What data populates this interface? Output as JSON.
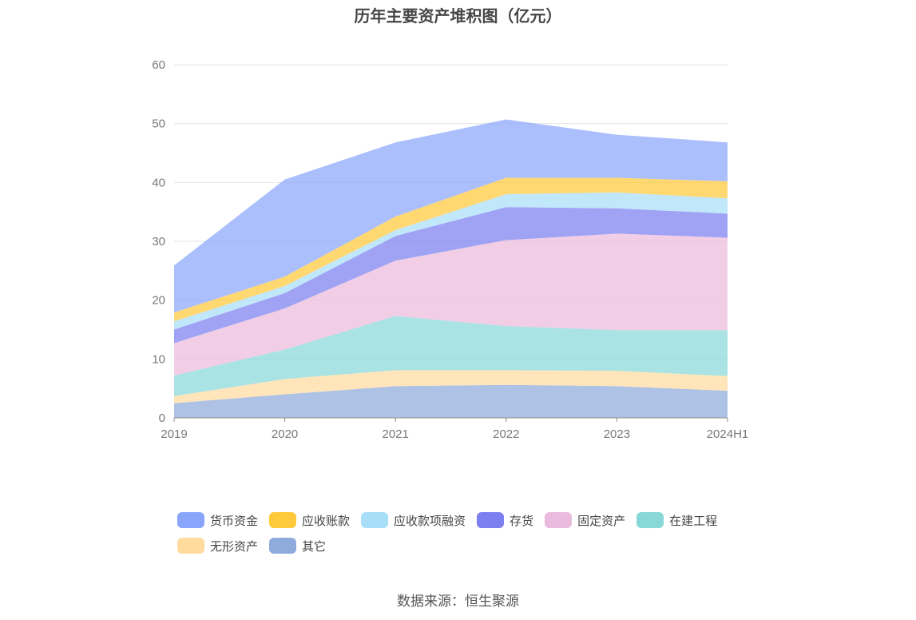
{
  "title": "历年主要资产堆积图（亿元）",
  "source": "数据来源：恒生聚源",
  "chart_data": {
    "type": "area",
    "stacked": true,
    "categories": [
      "2019",
      "2020",
      "2021",
      "2022",
      "2023",
      "2024H1"
    ],
    "ylim": [
      0,
      60
    ],
    "yticks": [
      0,
      10,
      20,
      30,
      40,
      50,
      60
    ],
    "grid": true,
    "legend_position": "bottom",
    "series": [
      {
        "name": "其它",
        "color": "#8faadc",
        "values": [
          2.5,
          4.0,
          5.4,
          5.6,
          5.4,
          4.6
        ]
      },
      {
        "name": "无形资产",
        "color": "#ffdb9e",
        "values": [
          1.2,
          2.6,
          2.7,
          2.5,
          2.6,
          2.5
        ]
      },
      {
        "name": "在建工程",
        "color": "#88d8d8",
        "values": [
          3.5,
          5.0,
          9.2,
          7.5,
          6.9,
          7.8
        ]
      },
      {
        "name": "固定资产",
        "color": "#ebbbdd",
        "values": [
          5.5,
          7.0,
          9.4,
          14.6,
          16.4,
          15.7
        ]
      },
      {
        "name": "存货",
        "color": "#7b7ff0",
        "values": [
          2.3,
          2.6,
          4.2,
          5.6,
          4.3,
          4.1
        ]
      },
      {
        "name": "应收款项融资",
        "color": "#a9def9",
        "values": [
          1.4,
          1.2,
          1.0,
          2.2,
          2.7,
          2.6
        ]
      },
      {
        "name": "应收账款",
        "color": "#ffc93c",
        "values": [
          1.5,
          1.6,
          2.3,
          2.8,
          2.5,
          2.9
        ]
      },
      {
        "name": "货币资金",
        "color": "#8aa6fc",
        "values": [
          8.0,
          16.5,
          12.6,
          9.9,
          7.3,
          6.6
        ]
      }
    ],
    "legend_order": [
      "货币资金",
      "应收账款",
      "应收款项融资",
      "存货",
      "固定资产",
      "在建工程",
      "无形资产",
      "其它"
    ]
  }
}
